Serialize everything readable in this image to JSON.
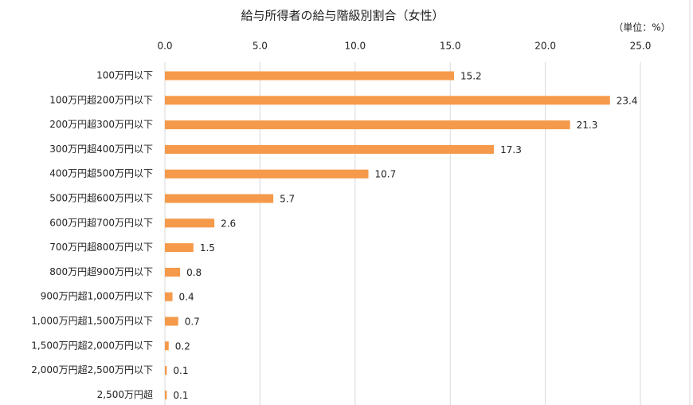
{
  "chart_data": {
    "type": "bar",
    "orientation": "horizontal",
    "title": "給与所得者の給与階級別割合（女性）",
    "annotation": "（単位：%）",
    "categories": [
      "100万円以下",
      "100万円超200万円以下",
      "200万円超300万円以下",
      "300万円超400万円以下",
      "400万円超500万円以下",
      "500万円超600万円以下",
      "600万円超700万円以下",
      "700万円超800万円以下",
      "800万円超900万円以下",
      "900万円超1,000万円以下",
      "1,000万円超1,500万円以下",
      "1,500万円超2,000万円以下",
      "2,000万円超2,500万円以下",
      "2,500万円超"
    ],
    "values": [
      15.2,
      23.4,
      21.3,
      17.3,
      10.7,
      5.7,
      2.6,
      1.5,
      0.8,
      0.4,
      0.7,
      0.2,
      0.1,
      0.1
    ],
    "color": "#f59a4a",
    "xlim": [
      0,
      25
    ],
    "xticks": [
      {
        "value": 0,
        "label": "0.0"
      },
      {
        "value": 5,
        "label": "5.0"
      },
      {
        "value": 10,
        "label": "10.0"
      },
      {
        "value": 15,
        "label": "15.0"
      },
      {
        "value": 20,
        "label": "20.0"
      },
      {
        "value": 25,
        "label": "25.0"
      }
    ],
    "grid": true
  }
}
